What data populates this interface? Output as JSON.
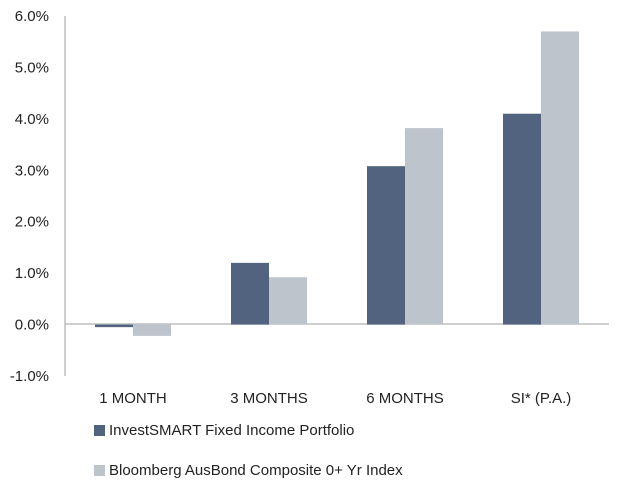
{
  "chart_data": {
    "type": "bar",
    "categories": [
      "1 MONTH",
      "3 MONTHS",
      "6 MONTHS",
      "SI* (P.A.)"
    ],
    "series": [
      {
        "name": "InvestSMART Fixed Income Portfolio",
        "values": [
          -0.05,
          1.2,
          3.08,
          4.1
        ],
        "color": "#526380"
      },
      {
        "name": "Bloomberg AusBond Composite 0+ Yr Index",
        "values": [
          -0.22,
          0.92,
          3.82,
          5.7
        ],
        "color": "#bec4cc"
      }
    ],
    "ylim": [
      -1.0,
      6.0
    ],
    "yticks": [
      "6.0%",
      "5.0%",
      "4.0%",
      "3.0%",
      "2.0%",
      "1.0%",
      "0.0%",
      "-1.0%"
    ],
    "ytick_values": [
      6,
      5,
      4,
      3,
      2,
      1,
      0,
      -1
    ],
    "title": "",
    "xlabel": "",
    "ylabel": "",
    "legend_position": "bottom-left",
    "grid": false
  }
}
